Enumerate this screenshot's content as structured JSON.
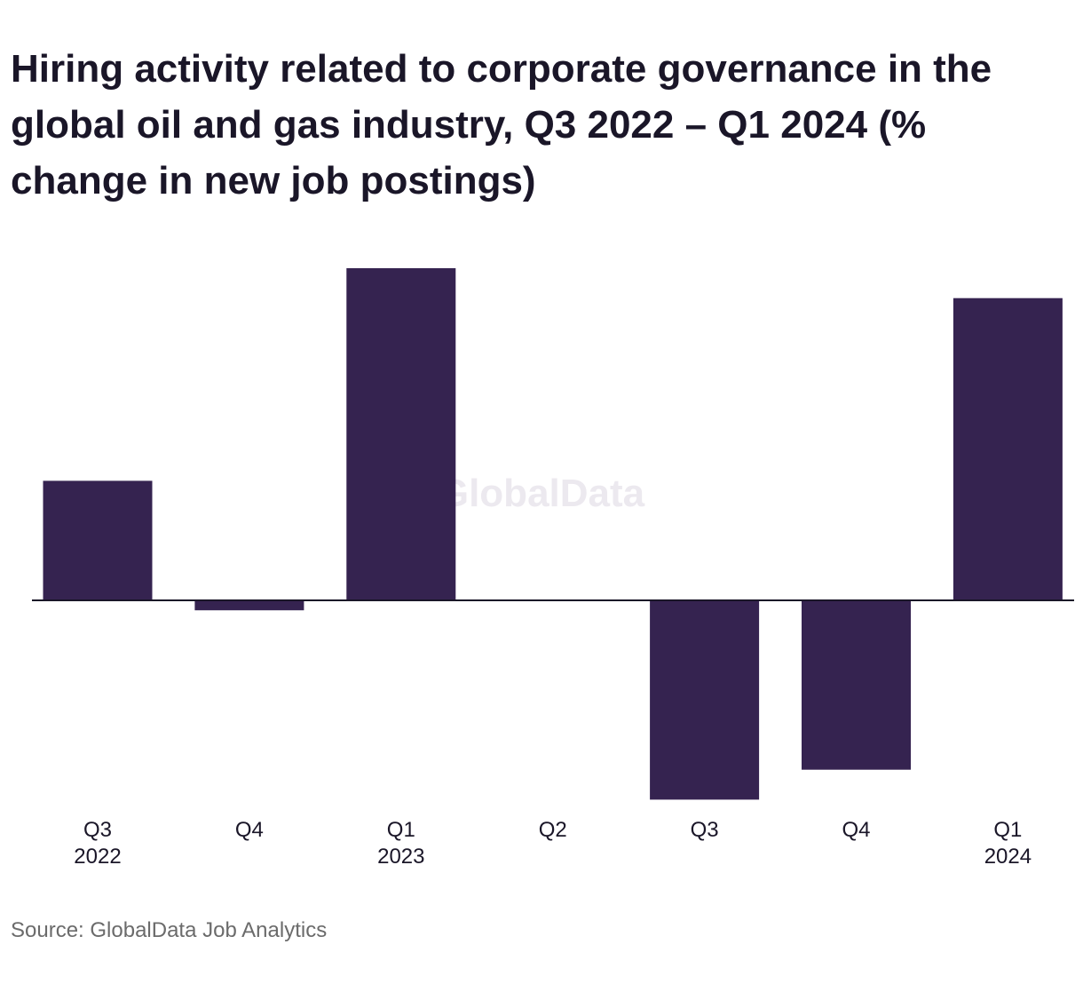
{
  "title": "Hiring activity related to corporate governance in the global oil and gas industry, Q3 2022 – Q1 2024 (% change in new job postings)",
  "source": "Source: GlobalData Job Analytics",
  "watermark": "GlobalData",
  "colors": {
    "bar": "#352350",
    "baseline": "#1a1628",
    "watermark": "#ece9ef"
  },
  "chart_data": {
    "type": "bar",
    "categories": [
      [
        "Q3",
        "2022"
      ],
      [
        "Q4",
        ""
      ],
      [
        "Q1",
        "2023"
      ],
      [
        "Q2",
        ""
      ],
      [
        "Q3",
        ""
      ],
      [
        "Q4",
        ""
      ],
      [
        "Q1",
        "2024"
      ]
    ],
    "values": [
      36,
      -3,
      100,
      0,
      -60,
      -51,
      91
    ],
    "ylim": [
      -60,
      100
    ],
    "title": "Hiring activity related to corporate governance in the global oil and gas industry, Q3 2022 – Q1 2024 (% change in new job postings)",
    "xlabel": "",
    "ylabel": "",
    "grid": false,
    "legend": "none"
  }
}
